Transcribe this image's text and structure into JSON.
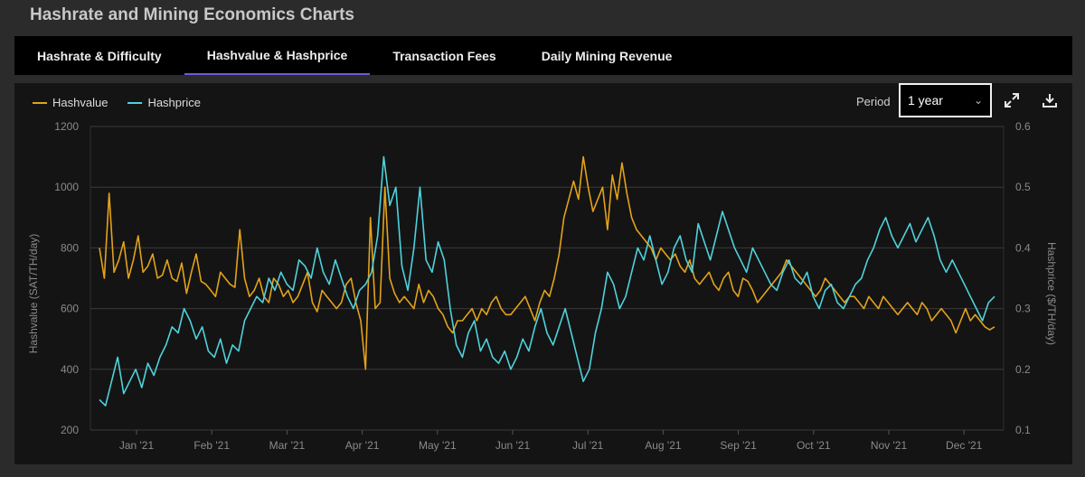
{
  "page": {
    "title": "Hashrate and Mining Economics Charts"
  },
  "tabs": [
    {
      "label": "Hashrate & Difficulty",
      "active": false
    },
    {
      "label": "Hashvalue & Hashprice",
      "active": true
    },
    {
      "label": "Transaction Fees",
      "active": false
    },
    {
      "label": "Daily Mining Revenue",
      "active": false
    }
  ],
  "controls": {
    "period_label": "Period",
    "period_value": "1 year",
    "expand_icon": "expand-icon",
    "download_icon": "download-icon"
  },
  "colors": {
    "hashvalue": "#e3a21a",
    "hashprice": "#4fd2dc",
    "grid": "#3a3a3a",
    "axis_text": "#8a8a8a"
  },
  "chart_data": {
    "type": "line",
    "title": "",
    "x_ticks": [
      "Jan '21",
      "Feb '21",
      "Mar '21",
      "Apr '21",
      "May '21",
      "Jun '21",
      "Jul '21",
      "Aug '21",
      "Sep '21",
      "Oct '21",
      "Nov '21",
      "Dec '21"
    ],
    "ylabel_left": "Hashvalue (SAT/TH/day)",
    "ylabel_right": "Hashprice ($/TH/day)",
    "ylim_left": [
      200,
      1200
    ],
    "ylim_right": [
      0.1,
      0.6
    ],
    "yticks_left": [
      "200",
      "400",
      "600",
      "800",
      "1000",
      "1200"
    ],
    "yticks_right": [
      "0.1",
      "0.2",
      "0.3",
      "0.4",
      "0.5",
      "0.6"
    ],
    "legend": [
      "Hashvalue",
      "Hashprice"
    ],
    "series": [
      {
        "name": "Hashvalue",
        "axis": "left",
        "values": [
          800,
          700,
          980,
          720,
          760,
          820,
          700,
          760,
          840,
          720,
          740,
          780,
          700,
          710,
          760,
          700,
          690,
          750,
          650,
          720,
          780,
          690,
          680,
          660,
          640,
          720,
          700,
          680,
          670,
          860,
          700,
          640,
          660,
          700,
          640,
          620,
          700,
          680,
          640,
          660,
          620,
          640,
          680,
          720,
          620,
          590,
          660,
          640,
          620,
          600,
          620,
          680,
          700,
          620,
          560,
          400,
          900,
          600,
          620,
          1000,
          700,
          650,
          620,
          640,
          620,
          600,
          680,
          620,
          660,
          640,
          600,
          580,
          540,
          520,
          560,
          560,
          580,
          600,
          560,
          600,
          580,
          620,
          640,
          600,
          580,
          580,
          600,
          620,
          640,
          600,
          560,
          620,
          660,
          640,
          700,
          780,
          900,
          960,
          1020,
          960,
          1100,
          1000,
          920,
          960,
          1000,
          860,
          1040,
          960,
          1080,
          980,
          900,
          860,
          840,
          820,
          800,
          760,
          800,
          780,
          760,
          780,
          740,
          720,
          760,
          700,
          680,
          700,
          720,
          680,
          660,
          700,
          720,
          660,
          640,
          700,
          690,
          660,
          620,
          640,
          660,
          680,
          700,
          720,
          760,
          740,
          720,
          700,
          680,
          660,
          640,
          660,
          700,
          680,
          660,
          640,
          620,
          640,
          640,
          620,
          600,
          640,
          620,
          600,
          640,
          620,
          600,
          580,
          600,
          620,
          600,
          580,
          620,
          600,
          560,
          580,
          600,
          580,
          560,
          520,
          560,
          600,
          560,
          580,
          560,
          540,
          530,
          540
        ]
      },
      {
        "name": "Hashprice",
        "axis": "right",
        "values": [
          0.15,
          0.14,
          0.18,
          0.22,
          0.16,
          0.18,
          0.2,
          0.17,
          0.21,
          0.19,
          0.22,
          0.24,
          0.27,
          0.26,
          0.3,
          0.28,
          0.25,
          0.27,
          0.23,
          0.22,
          0.25,
          0.21,
          0.24,
          0.23,
          0.28,
          0.3,
          0.32,
          0.31,
          0.35,
          0.33,
          0.36,
          0.34,
          0.33,
          0.38,
          0.37,
          0.35,
          0.4,
          0.36,
          0.34,
          0.38,
          0.35,
          0.32,
          0.3,
          0.33,
          0.34,
          0.36,
          0.42,
          0.55,
          0.47,
          0.5,
          0.37,
          0.33,
          0.4,
          0.5,
          0.38,
          0.36,
          0.41,
          0.38,
          0.3,
          0.24,
          0.22,
          0.26,
          0.28,
          0.23,
          0.25,
          0.22,
          0.21,
          0.23,
          0.2,
          0.22,
          0.25,
          0.23,
          0.27,
          0.3,
          0.26,
          0.24,
          0.27,
          0.3,
          0.26,
          0.22,
          0.18,
          0.2,
          0.26,
          0.3,
          0.36,
          0.34,
          0.3,
          0.32,
          0.36,
          0.4,
          0.38,
          0.42,
          0.38,
          0.34,
          0.36,
          0.4,
          0.42,
          0.38,
          0.36,
          0.44,
          0.41,
          0.38,
          0.42,
          0.46,
          0.43,
          0.4,
          0.38,
          0.36,
          0.4,
          0.38,
          0.36,
          0.34,
          0.33,
          0.36,
          0.38,
          0.35,
          0.34,
          0.36,
          0.32,
          0.3,
          0.33,
          0.34,
          0.31,
          0.3,
          0.32,
          0.34,
          0.35,
          0.38,
          0.4,
          0.43,
          0.45,
          0.42,
          0.4,
          0.42,
          0.44,
          0.41,
          0.43,
          0.45,
          0.42,
          0.38,
          0.36,
          0.38,
          0.36,
          0.34,
          0.32,
          0.3,
          0.28,
          0.31,
          0.32
        ]
      }
    ]
  }
}
